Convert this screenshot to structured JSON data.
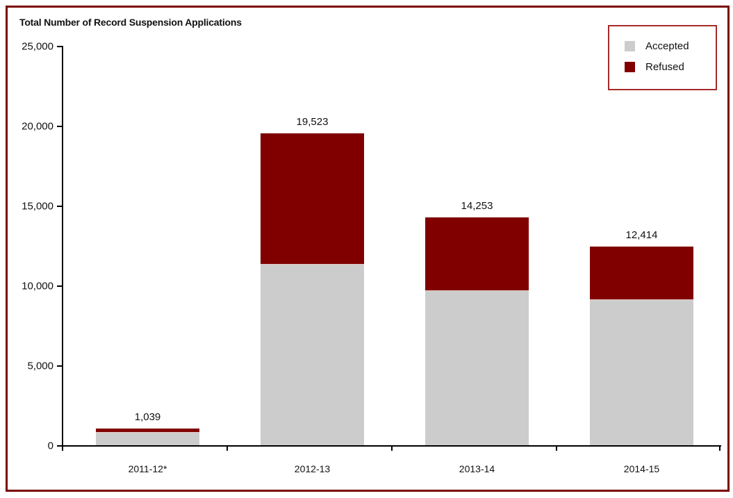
{
  "chart_data": {
    "type": "bar",
    "stacked": true,
    "title": "Total Number of Record Suspension Applications",
    "xlabel": "",
    "ylabel": "",
    "categories": [
      "2011-12*",
      "2012-13",
      "2013-14",
      "2014-15"
    ],
    "series": [
      {
        "name": "Accepted",
        "color": "#cccccc",
        "values": [
          825,
          11350,
          9700,
          9130
        ]
      },
      {
        "name": "Refused",
        "color": "#800000",
        "values": [
          214,
          8173,
          4553,
          3284
        ]
      }
    ],
    "totals": [
      1039,
      19523,
      14253,
      12414
    ],
    "total_labels": [
      "1,039",
      "19,523",
      "14,253",
      "12,414"
    ],
    "ylim": [
      0,
      25000
    ],
    "yticks": [
      0,
      5000,
      10000,
      15000,
      20000,
      25000
    ],
    "ytick_labels": [
      "0",
      "5,000",
      "10,000",
      "15,000",
      "20,000",
      "25,000"
    ],
    "grid": false,
    "legend_position": "top-right"
  },
  "legend": {
    "items": [
      {
        "label": "Accepted",
        "color": "#cccccc"
      },
      {
        "label": "Refused",
        "color": "#800000"
      }
    ]
  },
  "colors": {
    "frame": "#7b0000",
    "accepted": "#cccccc",
    "refused": "#800000"
  }
}
